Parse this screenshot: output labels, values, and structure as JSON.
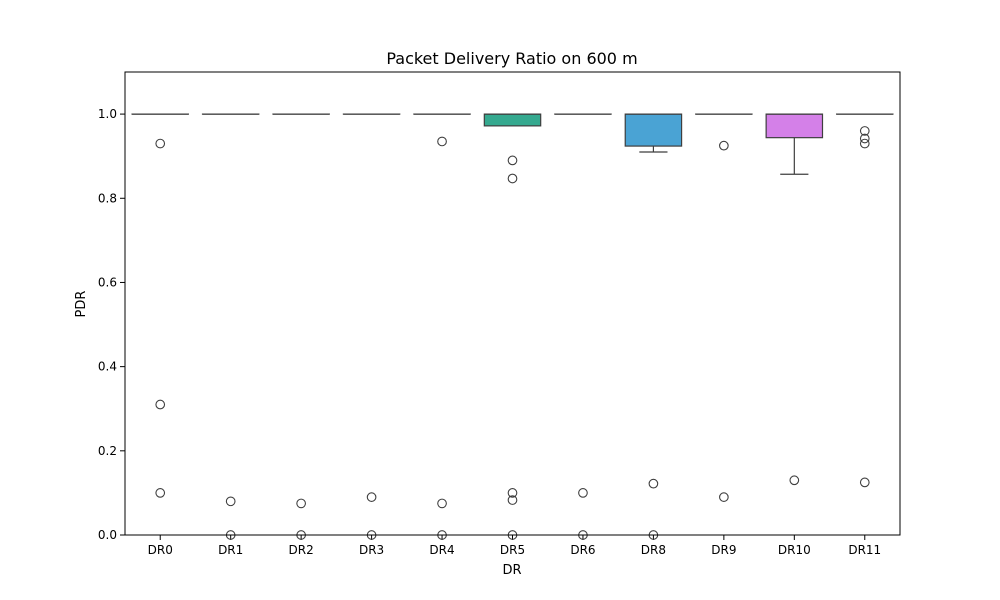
{
  "chart_data": {
    "type": "box",
    "title": "Packet Delivery Ratio on 600 m",
    "xlabel": "DR",
    "ylabel": "PDR",
    "ylim": [
      0,
      1.1
    ],
    "yticks": [
      0.0,
      0.2,
      0.4,
      0.6,
      0.8,
      1.0
    ],
    "ytick_labels": [
      "0.0",
      "0.2",
      "0.4",
      "0.6",
      "0.8",
      "1.0"
    ],
    "categories": [
      "DR0",
      "DR1",
      "DR2",
      "DR3",
      "DR4",
      "DR5",
      "DR6",
      "DR8",
      "DR9",
      "DR10",
      "DR11"
    ],
    "boxes": [
      {
        "label": "DR0",
        "color": "#e8705a",
        "whisker_low": 1.0,
        "q1": 1.0,
        "median": 1.0,
        "q3": 1.0,
        "whisker_high": 1.0,
        "outliers": [
          0.93,
          0.31,
          0.1
        ]
      },
      {
        "label": "DR1",
        "color": "#d08c2e",
        "whisker_low": 1.0,
        "q1": 1.0,
        "median": 1.0,
        "q3": 1.0,
        "whisker_high": 1.0,
        "outliers": [
          0.08,
          0.0
        ]
      },
      {
        "label": "DR2",
        "color": "#a59f2a",
        "whisker_low": 1.0,
        "q1": 1.0,
        "median": 1.0,
        "q3": 1.0,
        "whisker_high": 1.0,
        "outliers": [
          0.075,
          0.0
        ]
      },
      {
        "label": "DR3",
        "color": "#6cb02c",
        "whisker_low": 1.0,
        "q1": 1.0,
        "median": 1.0,
        "q3": 1.0,
        "whisker_high": 1.0,
        "outliers": [
          0.09,
          0.0
        ]
      },
      {
        "label": "DR4",
        "color": "#37b36e",
        "whisker_low": 1.0,
        "q1": 1.0,
        "median": 1.0,
        "q3": 1.0,
        "whisker_high": 1.0,
        "outliers": [
          0.935,
          0.075,
          0.0
        ]
      },
      {
        "label": "DR5",
        "color": "#35a98f",
        "whisker_low": 0.972,
        "q1": 0.972,
        "median": 1.0,
        "q3": 1.0,
        "whisker_high": 1.0,
        "outliers": [
          0.89,
          0.847,
          0.1,
          0.083,
          0.0
        ]
      },
      {
        "label": "DR6",
        "color": "#36a7aa",
        "whisker_low": 1.0,
        "q1": 1.0,
        "median": 1.0,
        "q3": 1.0,
        "whisker_high": 1.0,
        "outliers": [
          0.1,
          0.0
        ]
      },
      {
        "label": "DR8",
        "color": "#4aa3d4",
        "whisker_low": 0.91,
        "q1": 0.924,
        "median": 1.0,
        "q3": 1.0,
        "whisker_high": 1.0,
        "outliers": [
          0.122,
          0.0
        ]
      },
      {
        "label": "DR9",
        "color": "#9a8ee8",
        "whisker_low": 1.0,
        "q1": 1.0,
        "median": 1.0,
        "q3": 1.0,
        "whisker_high": 1.0,
        "outliers": [
          0.925,
          0.09
        ]
      },
      {
        "label": "DR10",
        "color": "#d480e8",
        "whisker_low": 0.857,
        "q1": 0.944,
        "median": 1.0,
        "q3": 1.0,
        "whisker_high": 1.0,
        "outliers": [
          0.13
        ]
      },
      {
        "label": "DR11",
        "color": "#e46fb8",
        "whisker_low": 1.0,
        "q1": 1.0,
        "median": 1.0,
        "q3": 1.0,
        "whisker_high": 1.0,
        "outliers": [
          0.96,
          0.942,
          0.93,
          0.125
        ]
      }
    ]
  }
}
